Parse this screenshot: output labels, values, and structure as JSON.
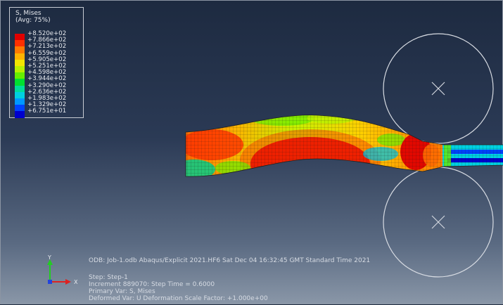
{
  "legend": {
    "title_line1": "S, Mises",
    "title_line2": "(Avg: 75%)",
    "entries": [
      {
        "label": "+8.520e+02",
        "color": "#e00000"
      },
      {
        "label": "+7.866e+02",
        "color": "#ff3000"
      },
      {
        "label": "+7.213e+02",
        "color": "#ff7a00"
      },
      {
        "label": "+6.559e+02",
        "color": "#ffb300"
      },
      {
        "label": "+5.905e+02",
        "color": "#f2e600"
      },
      {
        "label": "+5.251e+02",
        "color": "#b8f000"
      },
      {
        "label": "+4.598e+02",
        "color": "#66ee00"
      },
      {
        "label": "+3.944e+02",
        "color": "#00e030"
      },
      {
        "label": "+3.290e+02",
        "color": "#00dd99"
      },
      {
        "label": "+2.636e+02",
        "color": "#00d0e0"
      },
      {
        "label": "+1.983e+02",
        "color": "#0099ff"
      },
      {
        "label": "+1.329e+02",
        "color": "#0044ff"
      },
      {
        "label": "+6.751e+01",
        "color": "#0000cc"
      }
    ]
  },
  "info": {
    "odb_line": "ODB: Job-1.odb    Abaqus/Explicit 2021.HF6    Sat Dec 04 16:32:45 GMT Standard Time 2021",
    "step_line": "Step: Step-1",
    "increment_line": "Increment    889070: Step Time =   0.6000",
    "primary_var_line": "Primary Var: S, Mises",
    "deformed_var_line": "Deformed Var: U   Deformation Scale Factor: +1.000e+00"
  },
  "triad": {
    "y_label": "Y",
    "x_label": "X"
  },
  "colors": {
    "background_top": "#1d2a40",
    "background_bottom": "#8a97a8",
    "roller_outline": "#d8dce3"
  }
}
